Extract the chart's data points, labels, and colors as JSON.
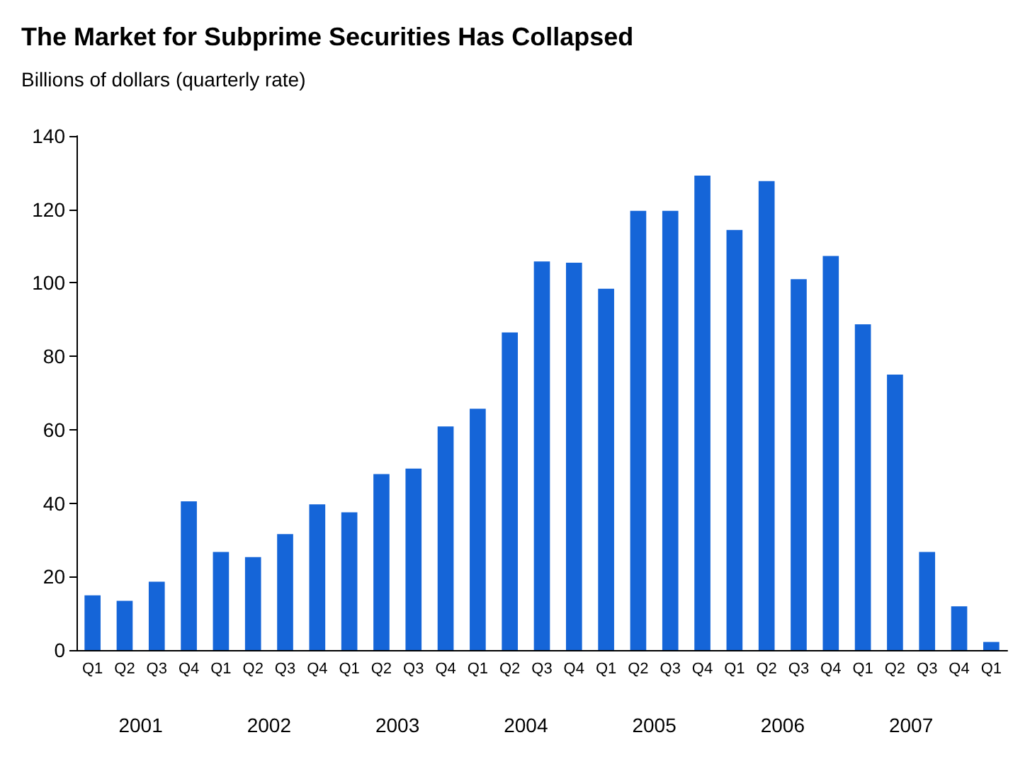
{
  "chart_data": {
    "type": "bar",
    "title": "The Market for Subprime Securities Has Collapsed",
    "subtitle": "Billions of dollars (quarterly rate)",
    "categories": [
      "Q1",
      "Q2",
      "Q3",
      "Q4",
      "Q1",
      "Q2",
      "Q3",
      "Q4",
      "Q1",
      "Q2",
      "Q3",
      "Q4",
      "Q1",
      "Q2",
      "Q3",
      "Q4",
      "Q1",
      "Q2",
      "Q3",
      "Q4",
      "Q1",
      "Q2",
      "Q3",
      "Q4",
      "Q1",
      "Q2",
      "Q3",
      "Q4",
      "Q1"
    ],
    "values": [
      14.9,
      13.4,
      18.6,
      40.5,
      26.7,
      25.3,
      31.6,
      39.7,
      37.5,
      47.9,
      49.4,
      60.9,
      65.7,
      86.5,
      105.8,
      105.5,
      98.4,
      119.6,
      119.6,
      129.2,
      114.4,
      127.7,
      101,
      107.3,
      88.7,
      75,
      26.7,
      11.9,
      2.2
    ],
    "color": "#1565d8",
    "ylim": [
      0,
      140
    ],
    "yticks": [
      0,
      20,
      40,
      60,
      80,
      100,
      120,
      140
    ],
    "grid": false,
    "annotations": [
      "2001",
      "2002",
      "2003",
      "2004",
      "2005",
      "2006",
      "2007"
    ]
  }
}
